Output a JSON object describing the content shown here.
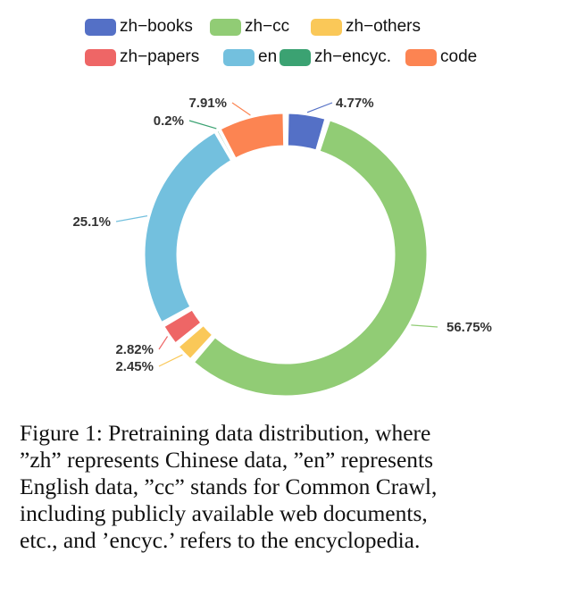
{
  "chart_data": {
    "type": "pie",
    "variant": "donut",
    "categories": [
      "zh-books",
      "zh-cc",
      "zh-others",
      "zh-papers",
      "en",
      "zh-encyc.",
      "code"
    ],
    "values": [
      4.77,
      56.75,
      2.45,
      2.82,
      25.1,
      0.2,
      7.91
    ],
    "value_labels": [
      "4.77%",
      "56.75%",
      "2.45%",
      "2.82%",
      "25.1%",
      "0.2%",
      "7.91%"
    ],
    "colors": [
      "#5470c6",
      "#91cc75",
      "#fac858",
      "#ee6666",
      "#73c0de",
      "#3ba272",
      "#fc8452"
    ],
    "legend_position": "top",
    "legend": [
      "zh−books",
      "zh−cc",
      "zh−others",
      "zh−papers",
      "en",
      "zh−encyc.",
      "code"
    ]
  },
  "caption": {
    "lines": [
      "Figure 1: Pretraining data distribution, where",
      "”zh” represents Chinese data, ”en” represents",
      "English data, ”cc” stands for Common Crawl,",
      "including publicly available web documents,",
      "etc., and ’encyc.’ refers to the encyclopedia."
    ]
  }
}
